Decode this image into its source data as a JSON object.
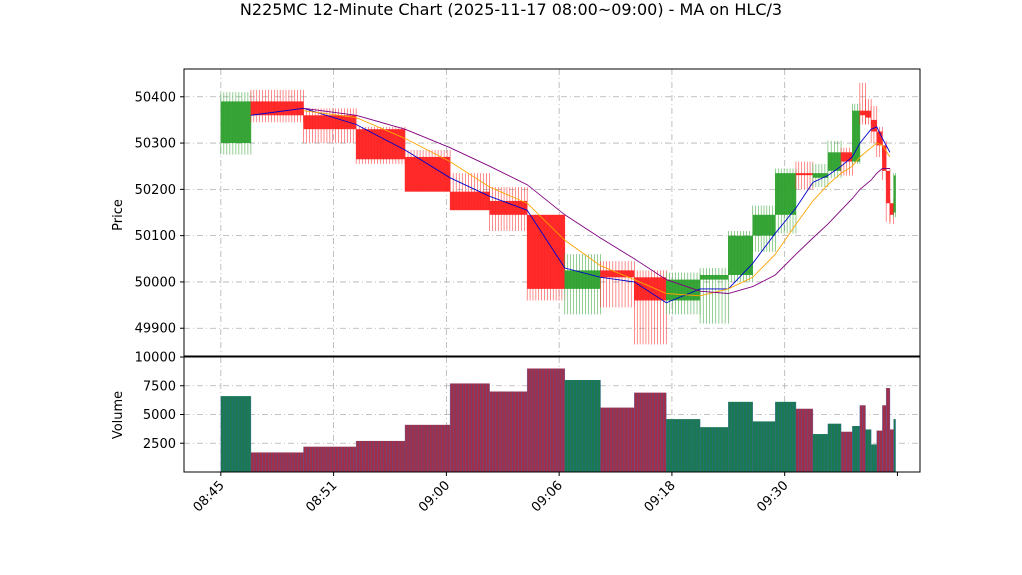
{
  "chart_data": {
    "type": "candlestick",
    "title": "N225MC 12-Minute Chart (2025-11-17 08:00~09:00) - MA on HLC/3",
    "price_panel": {
      "ylabel": "Price",
      "ylim": [
        49840,
        50460
      ],
      "yticks": [
        49900,
        50000,
        50100,
        50200,
        50300,
        50400
      ],
      "grid": true
    },
    "volume_panel": {
      "ylabel": "Volume",
      "ylim": [
        0,
        10000
      ],
      "yticks": [
        2500,
        5000,
        7500,
        10000
      ],
      "grid": true
    },
    "x_axis": {
      "tick_labels": [
        "08:45",
        "08:51",
        "09:00",
        "09:06",
        "09:18",
        "09:30"
      ],
      "tick_positions": [
        0,
        6,
        12,
        18,
        24,
        30
      ],
      "xlim": [
        -1.96,
        37.2
      ]
    },
    "colors": {
      "up": "#2ca02c",
      "down": "#ff2020",
      "ma_short": "#0000cc",
      "ma_mid": "#ffa500",
      "ma_long": "#800080",
      "vol_up": "#1a7a4f",
      "vol_down": "#a0304a",
      "vol_edge": "#3a5fb0"
    },
    "candles": [
      {
        "x0": 0,
        "x1": 1.6,
        "o": 50300,
        "c": 50390,
        "h": 50410,
        "l": 50275,
        "dir": "up"
      },
      {
        "x0": 1.6,
        "x1": 4.4,
        "o": 50390,
        "c": 50360,
        "h": 50415,
        "l": 50345,
        "dir": "down"
      },
      {
        "x0": 4.4,
        "x1": 7.2,
        "o": 50360,
        "c": 50330,
        "h": 50375,
        "l": 50300,
        "dir": "down"
      },
      {
        "x0": 7.2,
        "x1": 9.8,
        "o": 50330,
        "c": 50265,
        "h": 50335,
        "l": 50255,
        "dir": "down"
      },
      {
        "x0": 9.8,
        "x1": 12.2,
        "o": 50270,
        "c": 50195,
        "h": 50285,
        "l": 50195,
        "dir": "down"
      },
      {
        "x0": 12.2,
        "x1": 14.3,
        "o": 50195,
        "c": 50155,
        "h": 50235,
        "l": 50155,
        "dir": "down"
      },
      {
        "x0": 14.3,
        "x1": 16.3,
        "o": 50175,
        "c": 50145,
        "h": 50205,
        "l": 50110,
        "dir": "down"
      },
      {
        "x0": 16.3,
        "x1": 18.3,
        "o": 50145,
        "c": 49985,
        "h": 50145,
        "l": 49960,
        "dir": "down"
      },
      {
        "x0": 18.3,
        "x1": 20.2,
        "o": 49985,
        "c": 50025,
        "h": 50060,
        "l": 49930,
        "dir": "up"
      },
      {
        "x0": 20.2,
        "x1": 22.0,
        "o": 50025,
        "c": 50010,
        "h": 50045,
        "l": 49945,
        "dir": "down"
      },
      {
        "x0": 22.0,
        "x1": 23.7,
        "o": 50010,
        "c": 49960,
        "h": 50025,
        "l": 49865,
        "dir": "down"
      },
      {
        "x0": 23.7,
        "x1": 25.5,
        "o": 49960,
        "c": 50005,
        "h": 50020,
        "l": 49930,
        "dir": "up"
      },
      {
        "x0": 25.5,
        "x1": 27.0,
        "o": 50005,
        "c": 50015,
        "h": 50030,
        "l": 49910,
        "dir": "up"
      },
      {
        "x0": 27.0,
        "x1": 28.3,
        "o": 50015,
        "c": 50100,
        "h": 50110,
        "l": 50000,
        "dir": "up"
      },
      {
        "x0": 28.3,
        "x1": 29.5,
        "o": 50100,
        "c": 50145,
        "h": 50165,
        "l": 50065,
        "dir": "up"
      },
      {
        "x0": 29.5,
        "x1": 30.6,
        "o": 50145,
        "c": 50235,
        "h": 50245,
        "l": 50105,
        "dir": "up"
      },
      {
        "x0": 30.6,
        "x1": 31.5,
        "o": 50235,
        "c": 50235,
        "h": 50260,
        "l": 50200,
        "dir": "down"
      },
      {
        "x0": 31.5,
        "x1": 32.3,
        "o": 50225,
        "c": 50235,
        "h": 50255,
        "l": 50205,
        "dir": "up"
      },
      {
        "x0": 32.3,
        "x1": 33.0,
        "o": 50240,
        "c": 50280,
        "h": 50305,
        "l": 50225,
        "dir": "up"
      },
      {
        "x0": 33.0,
        "x1": 33.6,
        "o": 50280,
        "c": 50260,
        "h": 50290,
        "l": 50230,
        "dir": "down"
      },
      {
        "x0": 33.6,
        "x1": 34.0,
        "o": 50260,
        "c": 50370,
        "h": 50385,
        "l": 50255,
        "dir": "up"
      },
      {
        "x0": 34.0,
        "x1": 34.3,
        "o": 50370,
        "c": 50360,
        "h": 50430,
        "l": 50340,
        "dir": "down"
      },
      {
        "x0": 34.3,
        "x1": 34.6,
        "o": 50370,
        "c": 50355,
        "h": 50395,
        "l": 50340,
        "dir": "down"
      },
      {
        "x0": 34.6,
        "x1": 34.9,
        "o": 50350,
        "c": 50325,
        "h": 50380,
        "l": 50300,
        "dir": "down"
      },
      {
        "x0": 34.9,
        "x1": 35.2,
        "o": 50325,
        "c": 50295,
        "h": 50335,
        "l": 50270,
        "dir": "down"
      },
      {
        "x0": 35.2,
        "x1": 35.4,
        "o": 50295,
        "c": 50240,
        "h": 50305,
        "l": 50220,
        "dir": "down"
      },
      {
        "x0": 35.4,
        "x1": 35.6,
        "o": 50240,
        "c": 50170,
        "h": 50245,
        "l": 50130,
        "dir": "down"
      },
      {
        "x0": 35.6,
        "x1": 35.8,
        "o": 50170,
        "c": 50145,
        "h": 50180,
        "l": 50125,
        "dir": "down"
      },
      {
        "x0": 35.8,
        "x1": 35.9,
        "o": 50150,
        "c": 50230,
        "h": 50235,
        "l": 50140,
        "dir": "up"
      }
    ],
    "volumes": [
      {
        "x0": 0,
        "x1": 1.6,
        "v": 6600,
        "dir": "up"
      },
      {
        "x0": 1.6,
        "x1": 4.4,
        "v": 1700,
        "dir": "down"
      },
      {
        "x0": 4.4,
        "x1": 7.2,
        "v": 2200,
        "dir": "down"
      },
      {
        "x0": 7.2,
        "x1": 9.8,
        "v": 2700,
        "dir": "down"
      },
      {
        "x0": 9.8,
        "x1": 12.2,
        "v": 4100,
        "dir": "down"
      },
      {
        "x0": 12.2,
        "x1": 14.3,
        "v": 7700,
        "dir": "down"
      },
      {
        "x0": 14.3,
        "x1": 16.3,
        "v": 7000,
        "dir": "down"
      },
      {
        "x0": 16.3,
        "x1": 18.3,
        "v": 9000,
        "dir": "down"
      },
      {
        "x0": 18.3,
        "x1": 20.2,
        "v": 8000,
        "dir": "up"
      },
      {
        "x0": 20.2,
        "x1": 22.0,
        "v": 5600,
        "dir": "down"
      },
      {
        "x0": 22.0,
        "x1": 23.7,
        "v": 6900,
        "dir": "down"
      },
      {
        "x0": 23.7,
        "x1": 25.5,
        "v": 4600,
        "dir": "up"
      },
      {
        "x0": 25.5,
        "x1": 27.0,
        "v": 3900,
        "dir": "up"
      },
      {
        "x0": 27.0,
        "x1": 28.3,
        "v": 6100,
        "dir": "up"
      },
      {
        "x0": 28.3,
        "x1": 29.5,
        "v": 4400,
        "dir": "up"
      },
      {
        "x0": 29.5,
        "x1": 30.6,
        "v": 6100,
        "dir": "up"
      },
      {
        "x0": 30.6,
        "x1": 31.5,
        "v": 5500,
        "dir": "down"
      },
      {
        "x0": 31.5,
        "x1": 32.3,
        "v": 3300,
        "dir": "up"
      },
      {
        "x0": 32.3,
        "x1": 33.0,
        "v": 4200,
        "dir": "up"
      },
      {
        "x0": 33.0,
        "x1": 33.6,
        "v": 3500,
        "dir": "down"
      },
      {
        "x0": 33.6,
        "x1": 34.0,
        "v": 4000,
        "dir": "up"
      },
      {
        "x0": 34.0,
        "x1": 34.3,
        "v": 5800,
        "dir": "down"
      },
      {
        "x0": 34.3,
        "x1": 34.6,
        "v": 3700,
        "dir": "up"
      },
      {
        "x0": 34.6,
        "x1": 34.9,
        "v": 2400,
        "dir": "up"
      },
      {
        "x0": 34.9,
        "x1": 35.2,
        "v": 3600,
        "dir": "down"
      },
      {
        "x0": 35.2,
        "x1": 35.4,
        "v": 5800,
        "dir": "down"
      },
      {
        "x0": 35.4,
        "x1": 35.6,
        "v": 7300,
        "dir": "down"
      },
      {
        "x0": 35.6,
        "x1": 35.8,
        "v": 3700,
        "dir": "down"
      },
      {
        "x0": 35.8,
        "x1": 35.9,
        "v": 4600,
        "dir": "up"
      }
    ],
    "ma_series": [
      {
        "color_key": "ma_short",
        "points": [
          [
            1.6,
            50360
          ],
          [
            4.4,
            50375
          ],
          [
            7.2,
            50340
          ],
          [
            9.8,
            50285
          ],
          [
            12.2,
            50225
          ],
          [
            14.3,
            50185
          ],
          [
            16.3,
            50155
          ],
          [
            18.3,
            50030
          ],
          [
            20.2,
            50010
          ],
          [
            22.0,
            50000
          ],
          [
            23.7,
            49955
          ],
          [
            25.5,
            49985
          ],
          [
            27.0,
            49985
          ],
          [
            28.3,
            50040
          ],
          [
            29.5,
            50105
          ],
          [
            30.6,
            50160
          ],
          [
            31.5,
            50215
          ],
          [
            32.3,
            50230
          ],
          [
            33.0,
            50250
          ],
          [
            33.6,
            50270
          ],
          [
            34.0,
            50300
          ],
          [
            34.6,
            50330
          ],
          [
            34.9,
            50335
          ],
          [
            35.2,
            50310
          ],
          [
            35.6,
            50280
          ]
        ]
      },
      {
        "color_key": "ma_mid",
        "points": [
          [
            4.4,
            50370
          ],
          [
            7.2,
            50355
          ],
          [
            9.8,
            50310
          ],
          [
            12.2,
            50260
          ],
          [
            14.3,
            50205
          ],
          [
            16.3,
            50170
          ],
          [
            18.3,
            50090
          ],
          [
            20.2,
            50035
          ],
          [
            22.0,
            50005
          ],
          [
            23.7,
            49975
          ],
          [
            25.5,
            49970
          ],
          [
            27.0,
            49985
          ],
          [
            28.3,
            50010
          ],
          [
            29.5,
            50060
          ],
          [
            30.6,
            50125
          ],
          [
            31.5,
            50175
          ],
          [
            32.3,
            50210
          ],
          [
            33.0,
            50235
          ],
          [
            33.6,
            50250
          ],
          [
            34.0,
            50270
          ],
          [
            34.6,
            50290
          ],
          [
            34.9,
            50300
          ],
          [
            35.2,
            50295
          ],
          [
            35.6,
            50270
          ]
        ]
      },
      {
        "color_key": "ma_long",
        "points": [
          [
            4.4,
            50375
          ],
          [
            7.2,
            50360
          ],
          [
            9.8,
            50330
          ],
          [
            12.2,
            50290
          ],
          [
            14.3,
            50250
          ],
          [
            16.3,
            50210
          ],
          [
            18.3,
            50145
          ],
          [
            20.2,
            50095
          ],
          [
            22.0,
            50050
          ],
          [
            23.7,
            50005
          ],
          [
            25.5,
            49980
          ],
          [
            27.0,
            49975
          ],
          [
            28.3,
            49990
          ],
          [
            29.5,
            50015
          ],
          [
            30.6,
            50060
          ],
          [
            31.5,
            50095
          ],
          [
            32.3,
            50125
          ],
          [
            33.0,
            50155
          ],
          [
            33.6,
            50180
          ],
          [
            34.0,
            50200
          ],
          [
            34.6,
            50220
          ],
          [
            34.9,
            50235
          ],
          [
            35.2,
            50245
          ],
          [
            35.6,
            50245
          ]
        ]
      }
    ]
  }
}
